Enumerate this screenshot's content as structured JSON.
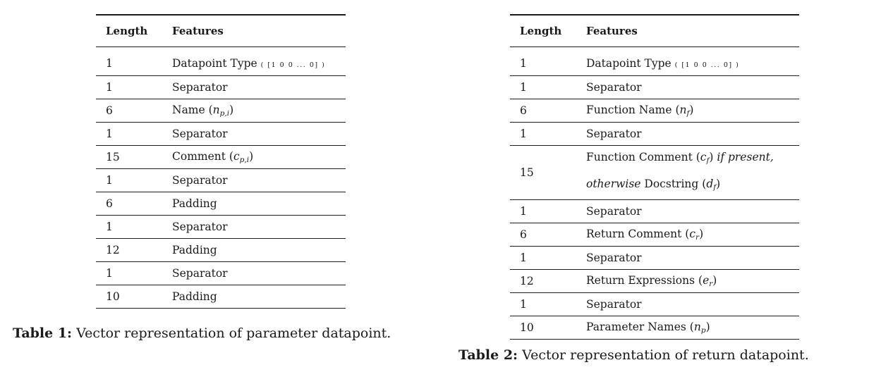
{
  "table1": {
    "headers": [
      "Length",
      "Features"
    ],
    "rows": [
      {
        "length": "1",
        "feature": "Datapoint Type",
        "detail": "[1 0 0 ... 0]"
      },
      {
        "length": "1",
        "feature": "Separator"
      },
      {
        "length": "6",
        "feature": "Name",
        "math": "n",
        "sub": "p,i"
      },
      {
        "length": "1",
        "feature": "Separator"
      },
      {
        "length": "15",
        "feature": "Comment",
        "math": "c",
        "sub": "p,i"
      },
      {
        "length": "1",
        "feature": "Separator"
      },
      {
        "length": "6",
        "feature": "Padding"
      },
      {
        "length": "1",
        "feature": "Separator"
      },
      {
        "length": "12",
        "feature": "Padding"
      },
      {
        "length": "1",
        "feature": "Separator"
      },
      {
        "length": "10",
        "feature": "Padding"
      }
    ],
    "caption_label": "Table 1:",
    "caption_text": "Vector representation of parameter datapoint."
  },
  "table2": {
    "headers": [
      "Length",
      "Features"
    ],
    "rows": [
      {
        "length": "1",
        "feature": "Datapoint Type",
        "detail": "[1 0 0 ... 0]"
      },
      {
        "length": "1",
        "feature": "Separator"
      },
      {
        "length": "6",
        "feature": "Function Name",
        "math": "n",
        "sub": "f"
      },
      {
        "length": "1",
        "feature": "Separator"
      },
      {
        "length": "15",
        "feature": "Function Comment",
        "math": "c",
        "sub": "f",
        "cond1": "if present,",
        "cond2": "otherwise",
        "feature2": "Docstring",
        "math2": "d",
        "sub2": "f"
      },
      {
        "length": "1",
        "feature": "Separator"
      },
      {
        "length": "6",
        "feature": "Return Comment",
        "math": "c",
        "sub": "r"
      },
      {
        "length": "1",
        "feature": "Separator"
      },
      {
        "length": "12",
        "feature": "Return Expressions",
        "math": "e",
        "sub": "r"
      },
      {
        "length": "1",
        "feature": "Separator"
      },
      {
        "length": "10",
        "feature": "Parameter Names",
        "math": "n",
        "sub": "p"
      }
    ],
    "caption_label": "Table 2:",
    "caption_text": "Vector representation of return datapoint."
  }
}
